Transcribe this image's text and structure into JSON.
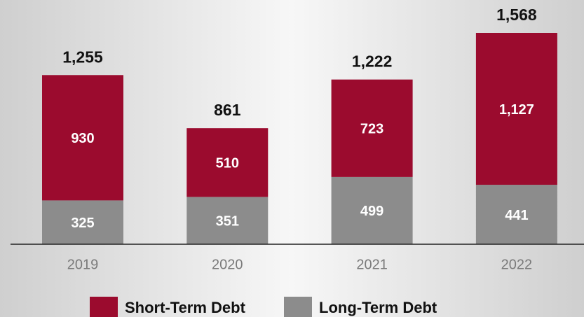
{
  "chart_data": {
    "type": "stacked-bar",
    "categories": [
      "2019",
      "2020",
      "2021",
      "2022"
    ],
    "series": [
      {
        "name": "Short-Term Debt",
        "color": "#9b0b2e",
        "values": [
          930,
          510,
          723,
          1127
        ],
        "value_labels": [
          "930",
          "510",
          "723",
          "1,127"
        ]
      },
      {
        "name": "Long-Term Debt",
        "color": "#8c8c8c",
        "values": [
          325,
          351,
          499,
          441
        ]
      }
    ],
    "totals": {
      "values": [
        1255,
        861,
        1222,
        1568
      ],
      "value_labels": [
        "1,255",
        "861",
        "1,222",
        "1,568"
      ]
    },
    "legend": "bottom"
  }
}
